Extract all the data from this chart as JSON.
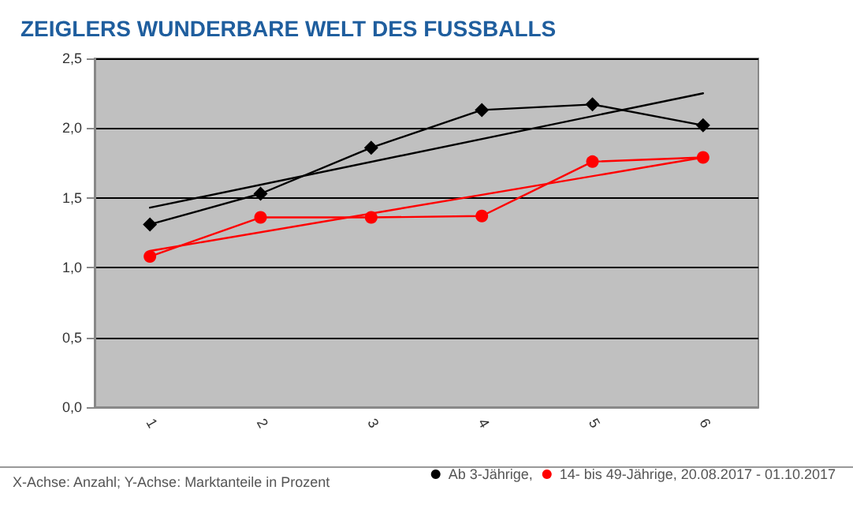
{
  "chart_data": {
    "type": "line",
    "title": "ZEIGLERS WUNDERBARE WELT DES FUSSBALLS",
    "categories": [
      "1",
      "2",
      "3",
      "4",
      "5",
      "6"
    ],
    "series": [
      {
        "name": "Ab 3-Jährige,",
        "color": "#000000",
        "marker": "diamond",
        "values": [
          1.31,
          1.53,
          1.86,
          2.13,
          2.17,
          2.02
        ]
      },
      {
        "name": "14- bis 49-Jährige, 20.08.2017 - 01.10.2017",
        "color": "#ff0000",
        "marker": "circle",
        "values": [
          1.08,
          1.36,
          1.36,
          1.37,
          1.76,
          1.79
        ]
      },
      {
        "color": "#000000",
        "marker": "none",
        "x": [
          "1",
          "6"
        ],
        "values": [
          1.43,
          2.25
        ]
      },
      {
        "color": "#ff0000",
        "marker": "none",
        "x": [
          "1",
          "6"
        ],
        "values": [
          1.12,
          1.79
        ]
      }
    ],
    "ylim": [
      0,
      2.5
    ],
    "yticks": [
      {
        "value": 0,
        "label": "0,0"
      },
      {
        "value": 0.5,
        "label": "0,5"
      },
      {
        "value": 1,
        "label": "1,0"
      },
      {
        "value": 1.5,
        "label": "1,5"
      },
      {
        "value": 2,
        "label": "2,0"
      },
      {
        "value": 2.5,
        "label": "2,5"
      }
    ],
    "grid": "y",
    "legend": "bottom right",
    "line_style": "solid",
    "annotations": [
      "X-Achse: Anzahl; Y-Achse: Marktanteile in Prozent"
    ]
  }
}
